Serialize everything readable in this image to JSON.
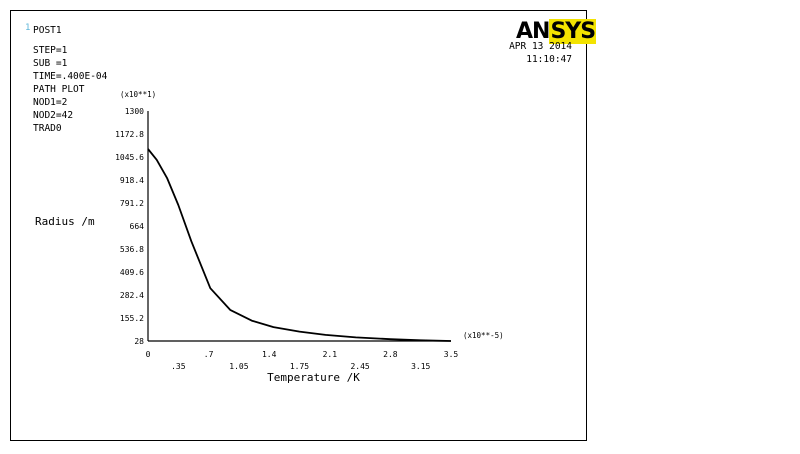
{
  "window_number": "1",
  "logo": {
    "an": "AN",
    "sys": "SYS"
  },
  "date": "APR 13 2014",
  "time": "11:10:47",
  "info_lines": [
    "POST1",
    "STEP=1",
    "SUB =1",
    "TIME=.400E-04",
    "PATH PLOT",
    "NOD1=2",
    "NOD2=42",
    "TRAD0"
  ],
  "colors": {
    "logo_accent": "#f3e300",
    "window_number": "#5fb6d9",
    "curve": "#000000"
  },
  "chart_data": {
    "type": "line",
    "title": "",
    "xlabel": "Temperature /K",
    "ylabel": "Radius /m",
    "x_multiplier": "(x10**-5)",
    "y_multiplier": "(x10**1)",
    "xlim": [
      0,
      3.5
    ],
    "ylim": [
      28,
      1300
    ],
    "x_ticks": [
      "0",
      ".35",
      ".7",
      "1.05",
      "1.4",
      "1.75",
      "2.1",
      "2.45",
      "2.8",
      "3.15",
      "3.5"
    ],
    "x_tick_values": [
      0,
      0.35,
      0.7,
      1.05,
      1.4,
      1.75,
      2.1,
      2.45,
      2.8,
      3.15,
      3.5
    ],
    "y_ticks": [
      "28",
      "155.2",
      "282.4",
      "409.6",
      "536.8",
      "664",
      "791.2",
      "918.4",
      "1045.6",
      "1172.8",
      "1300"
    ],
    "y_tick_values": [
      28,
      155.2,
      282.4,
      409.6,
      536.8,
      664,
      791.2,
      918.4,
      1045.6,
      1172.8,
      1300
    ],
    "grid": false,
    "series": [
      {
        "x": [
          0,
          0.1,
          0.22,
          0.35,
          0.5,
          0.72,
          0.95,
          1.2,
          1.45,
          1.75,
          2.05,
          2.4,
          2.8,
          3.15,
          3.5
        ],
        "y": [
          1090,
          1030,
          930,
          780,
          580,
          320,
          200,
          140,
          105,
          80,
          62,
          48,
          38,
          32,
          28
        ]
      }
    ]
  }
}
